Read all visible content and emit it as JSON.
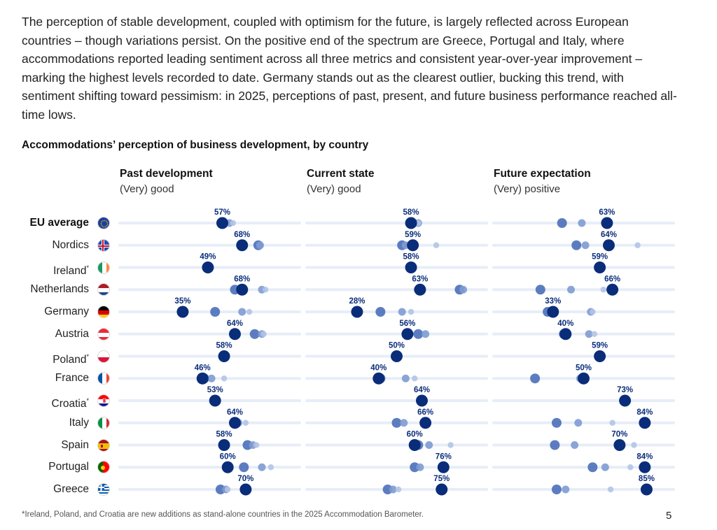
{
  "intro_text": "The perception of stable development, coupled with optimism for the future, is largely reflected across European countries – though variations persist. On the positive end of the spectrum are Greece, Portugal and Italy, where accommodations reported leading sentiment across all three metrics and consistent year-over-year improvement – marking the highest levels recorded to date. Germany stands out as the clearest outlier, bucking this trend, with sentiment shifting toward pessimism: in 2025, perceptions of past, present, and future business performance reached all-time lows.",
  "footnote": "*Ireland, Poland, and Croatia are new additions as stand-alone countries in the 2025 Accommodation Barometer.",
  "page_number": "5",
  "colors": {
    "dark": "#0a2d7a",
    "mid": "#4a6fb8",
    "light": "#7e9bd2",
    "pale": "#b3c4e6",
    "track": "#e7edf8"
  },
  "chart_data": {
    "type": "scatter",
    "title": "Accommodations’ perception of business development, by country",
    "columns": [
      {
        "title": "Past development",
        "subtitle": "(Very) good"
      },
      {
        "title": "Current state",
        "subtitle": "(Very) good"
      },
      {
        "title": "Future expectation",
        "subtitle": "(Very) positive"
      }
    ],
    "rows": [
      {
        "country": "EU average",
        "note": "",
        "bold": true,
        "flag": "eu",
        "values": [
          {
            "current": 57,
            "label": "57%",
            "prev": [
              57,
              61,
              63
            ]
          },
          {
            "current": 58,
            "label": "58%",
            "prev": [
              58,
              62,
              62
            ]
          },
          {
            "current": 63,
            "label": "63%",
            "prev": [
              38,
              49,
              64
            ]
          }
        ]
      },
      {
        "country": "Nordics",
        "note": "",
        "bold": false,
        "flag": "nordics",
        "values": [
          {
            "current": 68,
            "label": "68%",
            "prev": [
              77,
              78
            ]
          },
          {
            "current": 59,
            "label": "59%",
            "prev": [
              53,
              55,
              72
            ]
          },
          {
            "current": 64,
            "label": "64%",
            "prev": [
              46,
              51,
              80
            ]
          }
        ]
      },
      {
        "country": "Ireland",
        "note": "*",
        "bold": false,
        "flag": "ireland",
        "values": [
          {
            "current": 49,
            "label": "49%",
            "prev": []
          },
          {
            "current": 58,
            "label": "58%",
            "prev": []
          },
          {
            "current": 59,
            "label": "59%",
            "prev": []
          }
        ]
      },
      {
        "country": "Netherlands",
        "note": "",
        "bold": false,
        "flag": "netherlands",
        "values": [
          {
            "current": 68,
            "label": "68%",
            "prev": [
              64,
              79,
              81
            ]
          },
          {
            "current": 63,
            "label": "63%",
            "prev": [
              85,
              87,
              61
            ]
          },
          {
            "current": 66,
            "label": "66%",
            "prev": [
              26,
              43,
              61
            ]
          }
        ]
      },
      {
        "country": "Germany",
        "note": "",
        "bold": false,
        "flag": "germany",
        "values": [
          {
            "current": 35,
            "label": "35%",
            "prev": [
              53,
              68,
              72
            ]
          },
          {
            "current": 28,
            "label": "28%",
            "prev": [
              41,
              53,
              58
            ]
          },
          {
            "current": 33,
            "label": "33%",
            "prev": [
              30,
              54,
              55
            ]
          }
        ]
      },
      {
        "country": "Austria",
        "note": "",
        "bold": false,
        "flag": "austria",
        "values": [
          {
            "current": 64,
            "label": "64%",
            "prev": [
              75,
              79,
              80
            ]
          },
          {
            "current": 56,
            "label": "56%",
            "prev": [
              62,
              66
            ]
          },
          {
            "current": 40,
            "label": "40%",
            "prev": [
              39,
              53,
              56
            ]
          }
        ]
      },
      {
        "country": "Poland",
        "note": "*",
        "bold": false,
        "flag": "poland",
        "values": [
          {
            "current": 58,
            "label": "58%",
            "prev": []
          },
          {
            "current": 50,
            "label": "50%",
            "prev": []
          },
          {
            "current": 59,
            "label": "59%",
            "prev": []
          }
        ]
      },
      {
        "country": "France",
        "note": "",
        "bold": false,
        "flag": "france",
        "values": [
          {
            "current": 46,
            "label": "46%",
            "prev": [
              47,
              51,
              58
            ]
          },
          {
            "current": 40,
            "label": "40%",
            "prev": [
              41,
              55,
              60
            ]
          },
          {
            "current": 50,
            "label": "50%",
            "prev": [
              23,
              48,
              49
            ]
          }
        ]
      },
      {
        "country": "Croatia",
        "note": "*",
        "bold": false,
        "flag": "croatia",
        "values": [
          {
            "current": 53,
            "label": "53%",
            "prev": []
          },
          {
            "current": 64,
            "label": "64%",
            "prev": []
          },
          {
            "current": 73,
            "label": "73%",
            "prev": []
          }
        ]
      },
      {
        "country": "Italy",
        "note": "",
        "bold": false,
        "flag": "italy",
        "values": [
          {
            "current": 64,
            "label": "64%",
            "prev": [
              65,
              66,
              70
            ]
          },
          {
            "current": 66,
            "label": "66%",
            "prev": [
              50,
              54,
              65
            ]
          },
          {
            "current": 84,
            "label": "84%",
            "prev": [
              35,
              47,
              66
            ]
          }
        ]
      },
      {
        "country": "Spain",
        "note": "",
        "bold": false,
        "flag": "spain",
        "values": [
          {
            "current": 58,
            "label": "58%",
            "prev": [
              71,
              74,
              76
            ]
          },
          {
            "current": 60,
            "label": "60%",
            "prev": [
              62,
              68,
              80
            ]
          },
          {
            "current": 70,
            "label": "70%",
            "prev": [
              34,
              45,
              78
            ]
          }
        ]
      },
      {
        "country": "Portugal",
        "note": "",
        "bold": false,
        "flag": "portugal",
        "values": [
          {
            "current": 60,
            "label": "60%",
            "prev": [
              69,
              79,
              84
            ]
          },
          {
            "current": 76,
            "label": "76%",
            "prev": [
              60,
              63,
              76
            ]
          },
          {
            "current": 84,
            "label": "84%",
            "prev": [
              55,
              62,
              76
            ]
          }
        ]
      },
      {
        "country": "Greece",
        "note": "",
        "bold": false,
        "flag": "greece",
        "values": [
          {
            "current": 70,
            "label": "70%",
            "prev": [
              56,
              59,
              60
            ]
          },
          {
            "current": 75,
            "label": "75%",
            "prev": [
              45,
              48,
              51
            ]
          },
          {
            "current": 85,
            "label": "85%",
            "prev": [
              35,
              40,
              65
            ]
          }
        ]
      }
    ]
  }
}
